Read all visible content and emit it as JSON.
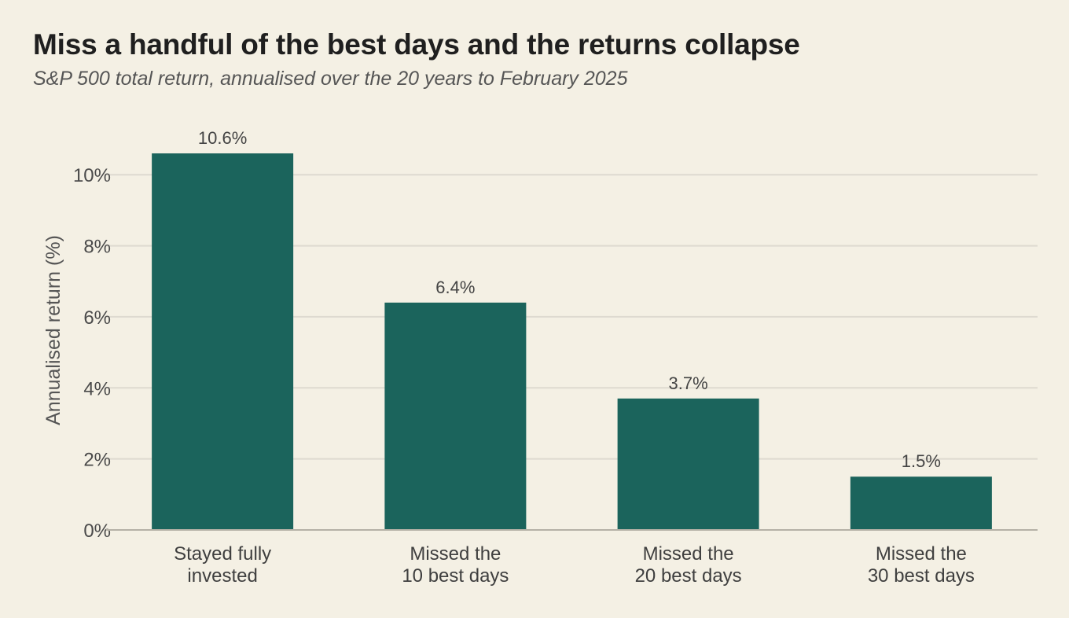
{
  "title": "Miss a handful of the best days and the returns collapse",
  "subtitle": "S&P 500 total return, annualised over the 20 years to February 2025",
  "chart_data": {
    "type": "bar",
    "title": "Miss a handful of the best days and the returns collapse",
    "subtitle": "S&P 500 total return, annualised over the 20 years to February 2025",
    "xlabel": "",
    "ylabel": "Annualised return (%)",
    "categories": [
      [
        "Stayed fully",
        "invested"
      ],
      [
        "Missed the",
        "10 best days"
      ],
      [
        "Missed the",
        "20 best days"
      ],
      [
        "Missed the",
        "30 best days"
      ]
    ],
    "values": [
      10.6,
      6.4,
      3.7,
      1.5
    ],
    "value_labels": [
      "10.6%",
      "6.4%",
      "3.7%",
      "1.5%"
    ],
    "ylim": [
      0,
      11.2
    ],
    "yticks": [
      0,
      2,
      4,
      6,
      8,
      10
    ],
    "ytick_labels": [
      "0%",
      "2%",
      "4%",
      "6%",
      "8%",
      "10%"
    ],
    "grid": true,
    "legend": "none",
    "bar_color": "#1b645c",
    "grid_color": "#dedad0",
    "axis_color": "#b5b1a6"
  }
}
